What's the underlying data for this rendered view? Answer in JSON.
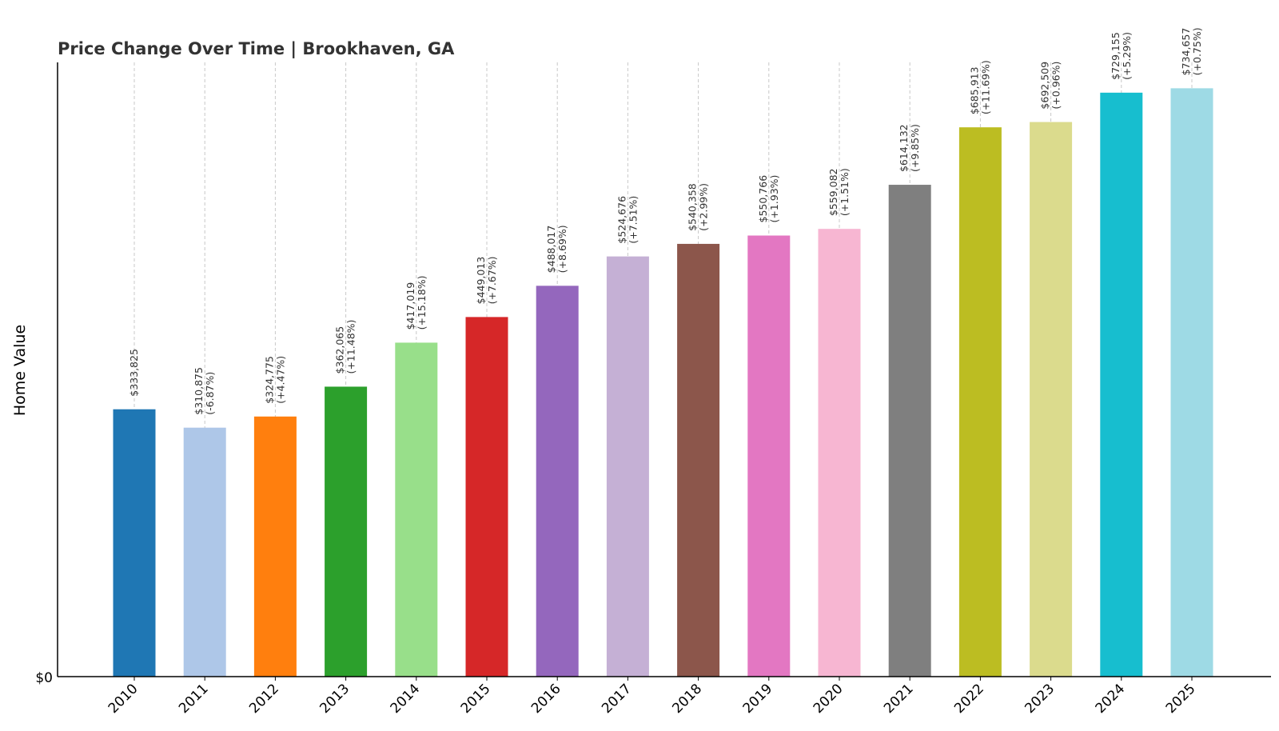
{
  "chart_data": {
    "type": "bar",
    "title": "Price Change Over Time | Brookhaven, GA",
    "xlabel": "",
    "ylabel": "Home Value",
    "y_ticks": [
      "$0"
    ],
    "ylim": [
      0,
      780000
    ],
    "grid": "vertical dashed",
    "legend": "none",
    "categories": [
      "2010",
      "2011",
      "2012",
      "2013",
      "2014",
      "2015",
      "2016",
      "2017",
      "2018",
      "2019",
      "2020",
      "2021",
      "2022",
      "2023",
      "2024",
      "2025"
    ],
    "values": [
      333825,
      310875,
      324775,
      362065,
      417019,
      449013,
      488017,
      524676,
      540358,
      550766,
      559082,
      614132,
      685913,
      692509,
      729155,
      734657
    ],
    "value_labels": [
      "$333,825",
      "$310,875",
      "$324,775",
      "$362,065",
      "$417,019",
      "$449,013",
      "$488,017",
      "$524,676",
      "$540,358",
      "$550,766",
      "$559,082",
      "$614,132",
      "$685,913",
      "$692,509",
      "$729,155",
      "$734,657"
    ],
    "change_labels": [
      "",
      "(-6.87%)",
      "(+4.47%)",
      "(+11.48%)",
      "(+15.18%)",
      "(+7.67%)",
      "(+8.69%)",
      "(+7.51%)",
      "(+2.99%)",
      "(+1.93%)",
      "(+1.51%)",
      "(+9.85%)",
      "(+11.69%)",
      "(+0.96%)",
      "(+5.29%)",
      "(+0.75%)"
    ],
    "colors": [
      "#1f77b4",
      "#aec7e8",
      "#ff7f0e",
      "#2ca02c",
      "#98df8a",
      "#d62728",
      "#9467bd",
      "#c5b0d5",
      "#8c564b",
      "#e377c2",
      "#f7b6d2",
      "#7f7f7f",
      "#bcbd22",
      "#dbdb8d",
      "#17becf",
      "#9edae5"
    ]
  }
}
